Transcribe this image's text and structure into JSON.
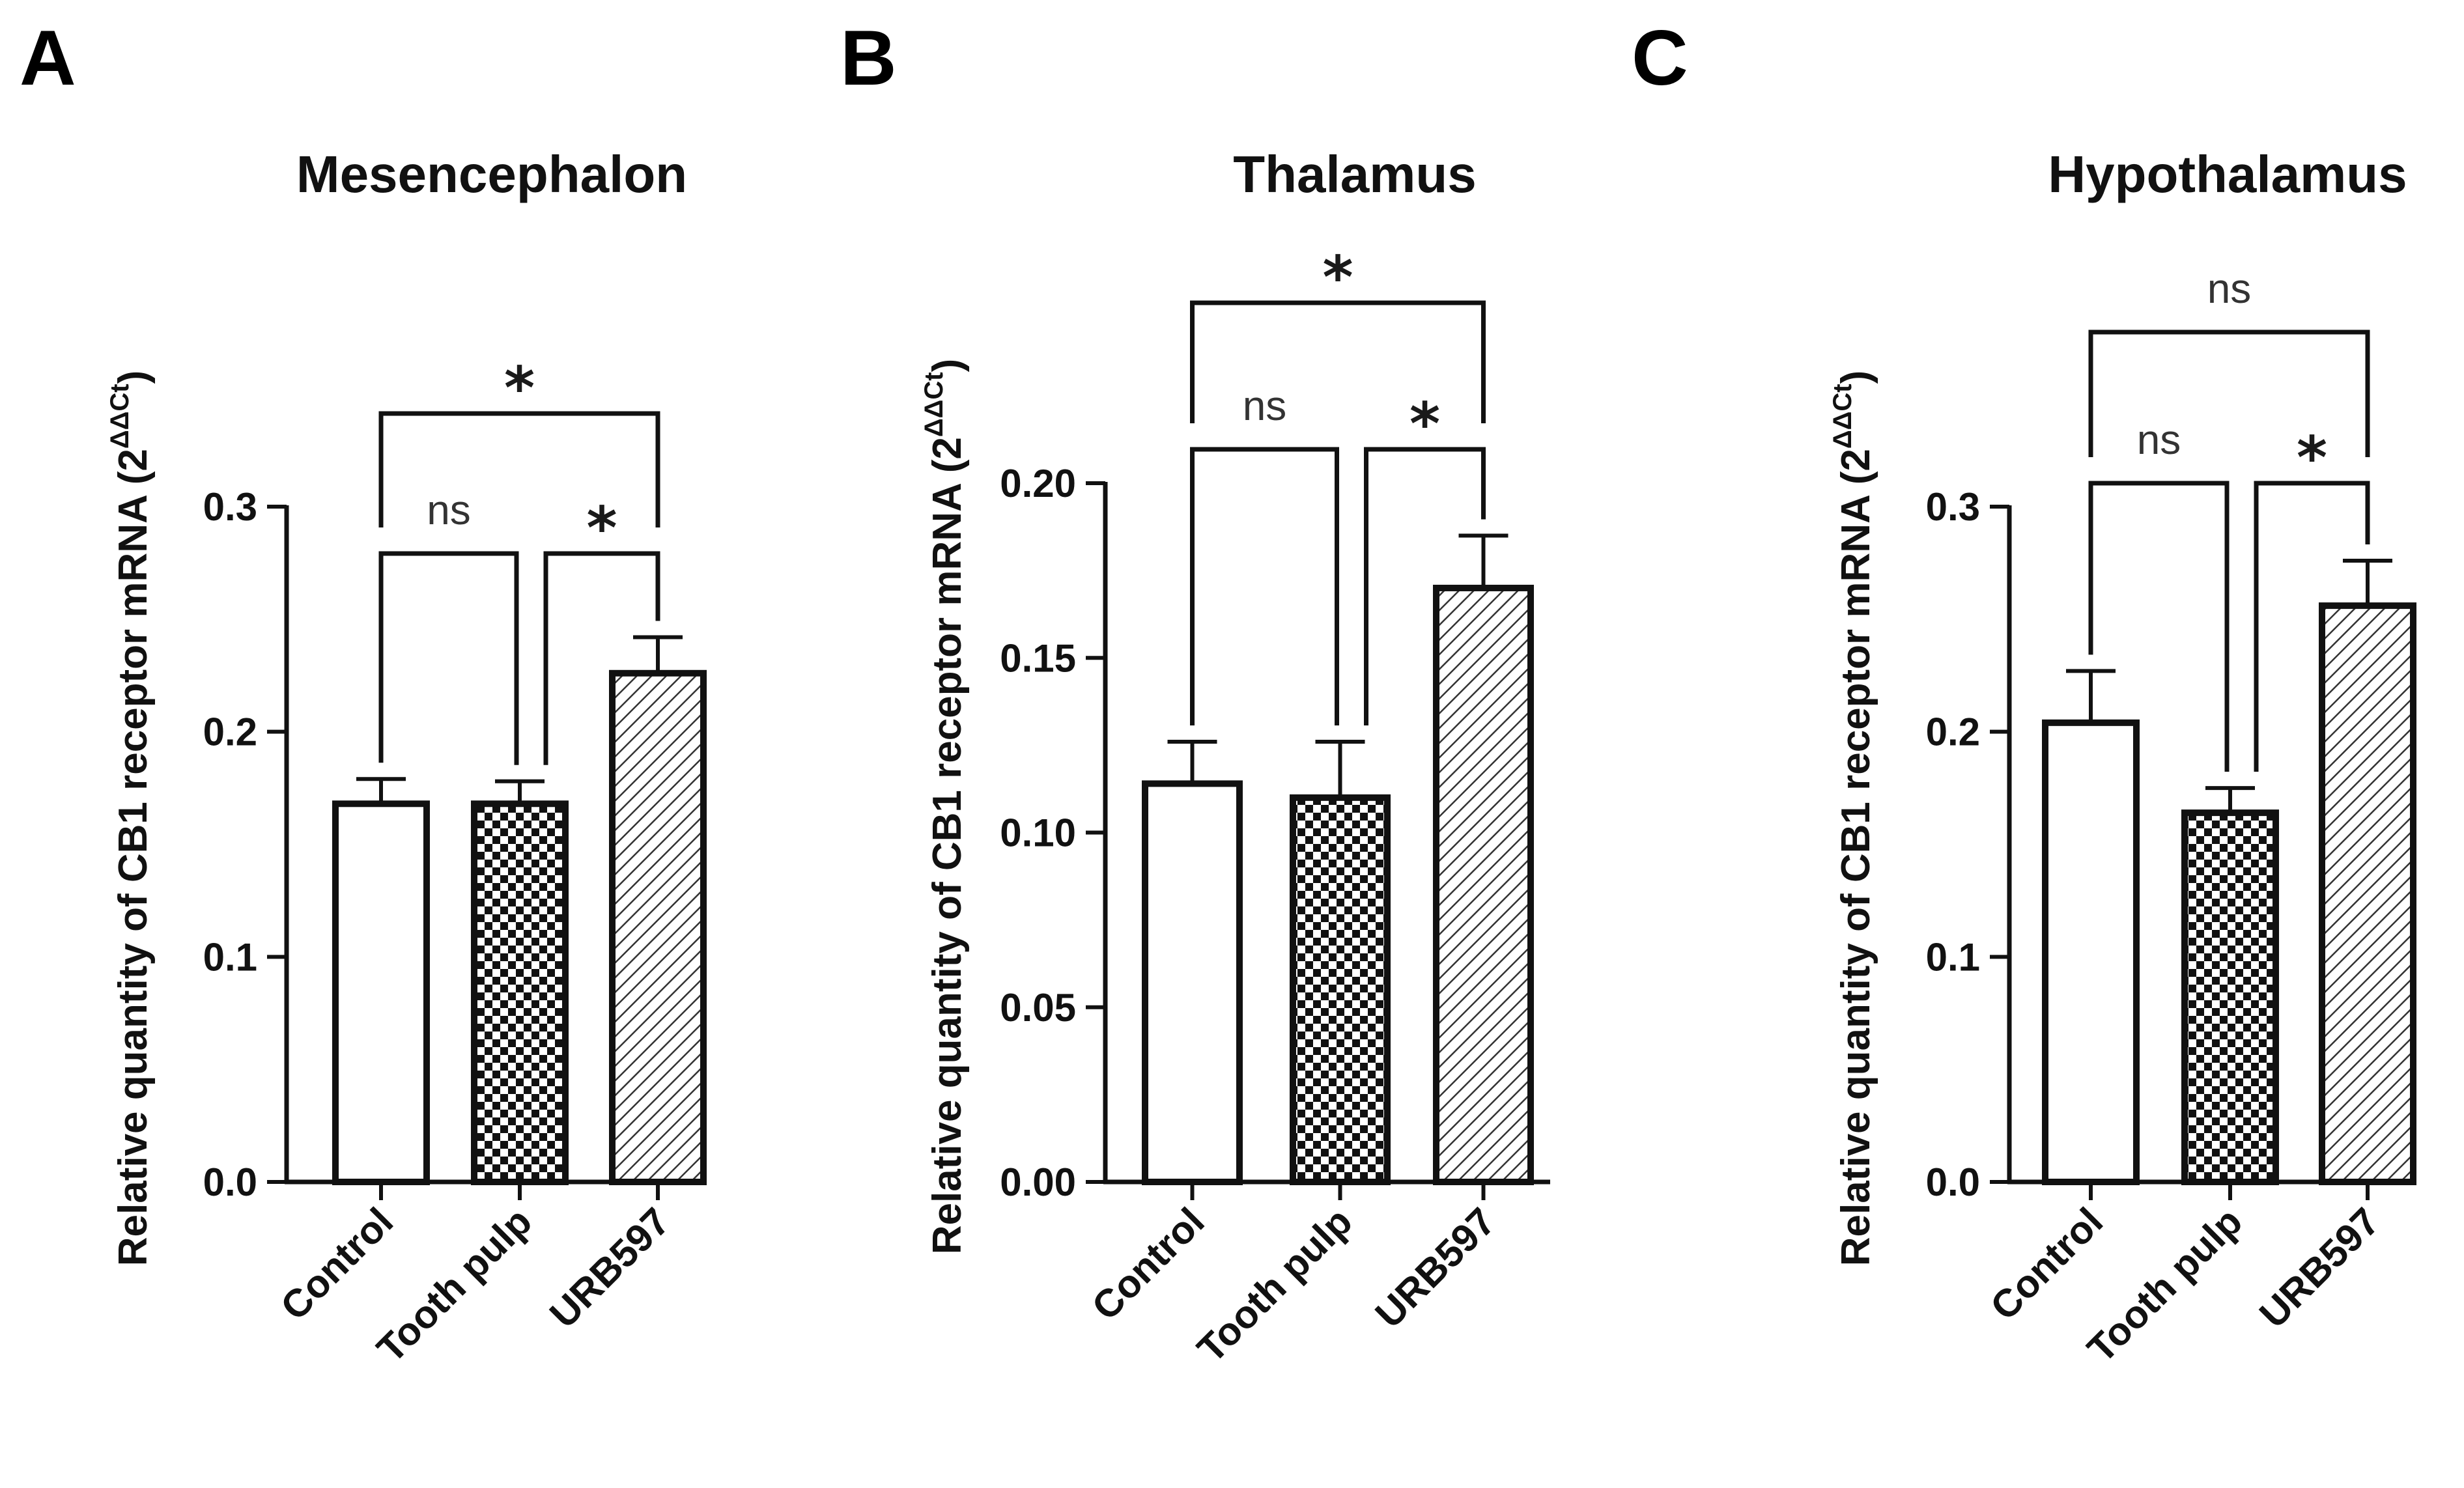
{
  "panels": [
    {
      "letter": "A",
      "chart_data": {
        "type": "bar",
        "title": "Mesencephalon",
        "ylabel": "Relative quantity of CB1 receptor mRNA (2",
        "ylabel_sup": "ΔΔCt",
        "ylabel_close": ")",
        "categories": [
          "Control",
          "Tooth pulp",
          "URB597"
        ],
        "values": [
          0.168,
          0.168,
          0.226
        ],
        "errors": [
          0.011,
          0.01,
          0.016
        ],
        "fills": [
          "open",
          "checker",
          "hatch"
        ],
        "ylim": [
          0,
          0.3
        ],
        "yticks": [
          "0.0",
          "0.1",
          "0.2",
          "0.3"
        ],
        "ytick_values": [
          0,
          0.1,
          0.2,
          0.3
        ],
        "comparisons": [
          {
            "from": 0,
            "to": 1,
            "label": "ns",
            "level": 1
          },
          {
            "from": 1,
            "to": 2,
            "label": "*",
            "level": 1
          },
          {
            "from": 0,
            "to": 2,
            "label": "*",
            "level": 2
          }
        ]
      }
    },
    {
      "letter": "B",
      "chart_data": {
        "type": "bar",
        "title": "Thalamus",
        "ylabel": "Relative quantity of CB1 receptor mRNA (2",
        "ylabel_sup": "ΔΔCt",
        "ylabel_close": ")",
        "categories": [
          "Control",
          "Tooth pulp",
          "URB597"
        ],
        "values": [
          0.114,
          0.11,
          0.17
        ],
        "errors": [
          0.012,
          0.016,
          0.015
        ],
        "fills": [
          "open",
          "checker",
          "hatch"
        ],
        "ylim": [
          0,
          0.2
        ],
        "yticks": [
          "0.00",
          "0.05",
          "0.10",
          "0.15",
          "0.20"
        ],
        "ytick_values": [
          0,
          0.05,
          0.1,
          0.15,
          0.2
        ],
        "comparisons": [
          {
            "from": 0,
            "to": 1,
            "label": "ns",
            "level": 1
          },
          {
            "from": 1,
            "to": 2,
            "label": "*",
            "level": 1
          },
          {
            "from": 0,
            "to": 2,
            "label": "*",
            "level": 2
          }
        ]
      }
    },
    {
      "letter": "C",
      "chart_data": {
        "type": "bar",
        "title": "Hypothalamus",
        "ylabel": "Relative quantity of CB1 receptor mRNA (2",
        "ylabel_sup": "ΔΔCt",
        "ylabel_close": ")",
        "categories": [
          "Control",
          "Tooth pulp",
          "URB597"
        ],
        "values": [
          0.204,
          0.164,
          0.256
        ],
        "errors": [
          0.023,
          0.011,
          0.02
        ],
        "fills": [
          "open",
          "checker",
          "hatch"
        ],
        "ylim": [
          0,
          0.3
        ],
        "yticks": [
          "0.0",
          "0.1",
          "0.2",
          "0.3"
        ],
        "ytick_values": [
          0,
          0.1,
          0.2,
          0.3
        ],
        "comparisons": [
          {
            "from": 0,
            "to": 1,
            "label": "ns",
            "level": 1
          },
          {
            "from": 1,
            "to": 2,
            "label": "*",
            "level": 1
          },
          {
            "from": 0,
            "to": 2,
            "label": "ns",
            "level": 2
          }
        ]
      }
    }
  ],
  "colors": {
    "axis": "#111111",
    "bar_outline": "#111111",
    "star_accent": "#c9a227"
  }
}
